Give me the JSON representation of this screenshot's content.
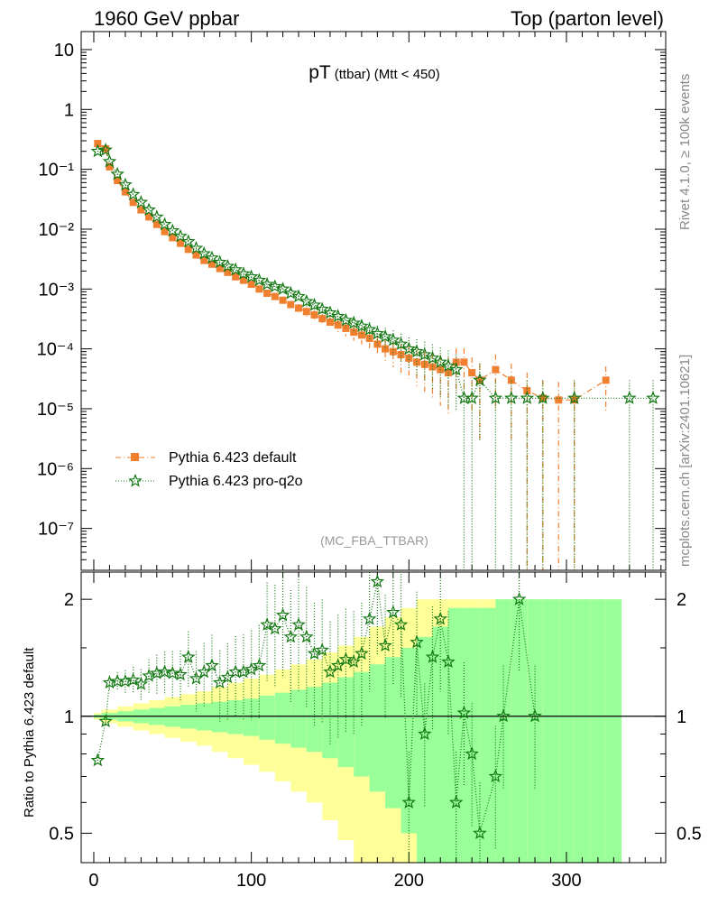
{
  "header": {
    "left": "1960 GeV ppbar",
    "right": "Top (parton level)"
  },
  "side_labels": {
    "rivet": "Rivet 4.1.0, ≥ 100k events",
    "mcplots": "mcplots.cern.ch [arXiv:2401.10621]"
  },
  "colors": {
    "default": "#f07f2f",
    "proq2o": "#117711",
    "band_outer": "#ffff99",
    "band_inner": "#99ff99"
  },
  "chart_data": [
    {
      "type": "scatter",
      "panel": "main",
      "title": "pT",
      "title_sub": "(ttbar)",
      "title_cut": "(Mtt < 450)",
      "analysis": "(MC_FBA_TTBAR)",
      "xlabel": "",
      "ylabel": "",
      "xlim": [
        -8,
        363
      ],
      "ylim": [
        2e-08,
        20
      ],
      "yscale": "log",
      "ytick_labels": [
        "10",
        "1",
        "10⁻¹",
        "10⁻²",
        "10⁻³",
        "10⁻⁴",
        "10⁻⁵",
        "10⁻⁶",
        "10⁻⁷"
      ],
      "ytick_values": [
        10,
        1,
        0.1,
        0.01,
        0.001,
        0.0001,
        1e-05,
        1e-06,
        1e-07
      ],
      "legend_position": "lower-left",
      "series": [
        {
          "name": "Pythia 6.423 default",
          "marker": "square",
          "line": "dash-dot",
          "x": [
            2.5,
            7.5,
            10,
            15,
            20,
            25,
            30,
            35,
            40,
            45,
            50,
            55,
            60,
            65,
            70,
            75,
            80,
            85,
            90,
            95,
            100,
            105,
            110,
            115,
            120,
            125,
            130,
            135,
            140,
            145,
            150,
            155,
            160,
            165,
            170,
            175,
            180,
            185,
            190,
            195,
            200,
            205,
            210,
            215,
            220,
            225,
            230,
            235,
            240,
            245,
            255,
            265,
            275,
            285,
            295,
            305,
            325
          ],
          "y": [
            0.27,
            0.22,
            0.11,
            0.065,
            0.042,
            0.028,
            0.021,
            0.016,
            0.012,
            0.0091,
            0.0072,
            0.0058,
            0.0046,
            0.0037,
            0.003,
            0.0026,
            0.0022,
            0.0019,
            0.0016,
            0.0014,
            0.0012,
            0.001,
            0.00085,
            0.00075,
            0.00065,
            0.00055,
            0.00048,
            0.00042,
            0.00037,
            0.00032,
            0.00028,
            0.00025,
            0.00022,
            0.00019,
            0.00017,
            0.00015,
            0.00012,
            0.0001,
            9e-05,
            8e-05,
            7e-05,
            6e-05,
            5.5e-05,
            5e-05,
            4.5e-05,
            4e-05,
            6e-05,
            6e-05,
            4e-05,
            3e-05,
            4.5e-05,
            3e-05,
            2e-05,
            1.5e-05,
            1.4e-05,
            1.4e-05,
            3e-05
          ],
          "yerr_rel": [
            0.01,
            0.01,
            0.01,
            0.02,
            0.02,
            0.03,
            0.03,
            0.03,
            0.04,
            0.04,
            0.05,
            0.05,
            0.06,
            0.06,
            0.07,
            0.07,
            0.08,
            0.08,
            0.09,
            0.1,
            0.1,
            0.11,
            0.12,
            0.13,
            0.14,
            0.15,
            0.16,
            0.17,
            0.18,
            0.2,
            0.22,
            0.24,
            0.26,
            0.28,
            0.3,
            0.33,
            0.36,
            0.4,
            0.45,
            0.5,
            0.55,
            0.6,
            0.65,
            0.7,
            0.75,
            0.8,
            0.7,
            0.7,
            0.8,
            0.9,
            0.8,
            0.9,
            1.0,
            1.0,
            1.0,
            1.0,
            0.7
          ]
        },
        {
          "name": "Pythia 6.423 pro-q2o",
          "marker": "star",
          "line": "dotted",
          "x": [
            2.5,
            7.5,
            10,
            15,
            20,
            25,
            30,
            35,
            40,
            45,
            50,
            55,
            60,
            65,
            70,
            75,
            80,
            85,
            90,
            95,
            100,
            105,
            110,
            115,
            120,
            125,
            130,
            135,
            140,
            145,
            150,
            155,
            160,
            165,
            170,
            175,
            180,
            185,
            190,
            195,
            200,
            205,
            210,
            215,
            220,
            225,
            230,
            235,
            240,
            245,
            255,
            265,
            275,
            285,
            305,
            340,
            355
          ],
          "y": [
            0.2,
            0.21,
            0.135,
            0.083,
            0.055,
            0.038,
            0.028,
            0.021,
            0.016,
            0.012,
            0.0094,
            0.0076,
            0.0062,
            0.0048,
            0.0039,
            0.0033,
            0.0028,
            0.0024,
            0.0021,
            0.0018,
            0.0016,
            0.0014,
            0.0012,
            0.0011,
            0.001,
            0.00085,
            0.00075,
            0.00062,
            0.00054,
            0.00046,
            0.0004,
            0.00035,
            0.0003,
            0.00027,
            0.00024,
            0.00021,
            0.00018,
            0.00016,
            0.00014,
            0.00012,
            0.0001,
            9e-05,
            8e-05,
            7e-05,
            6e-05,
            5.2e-05,
            4.5e-05,
            1.5e-05,
            1.5e-05,
            3e-05,
            1.5e-05,
            1.5e-05,
            1.5e-05,
            1.5e-05,
            1.5e-05,
            1.5e-05,
            1.5e-05
          ],
          "yerr_rel": [
            0.01,
            0.01,
            0.01,
            0.02,
            0.02,
            0.03,
            0.03,
            0.03,
            0.04,
            0.04,
            0.05,
            0.05,
            0.06,
            0.06,
            0.07,
            0.07,
            0.08,
            0.08,
            0.09,
            0.1,
            0.1,
            0.11,
            0.12,
            0.13,
            0.14,
            0.15,
            0.16,
            0.17,
            0.18,
            0.2,
            0.22,
            0.24,
            0.26,
            0.28,
            0.3,
            0.33,
            0.36,
            0.4,
            0.45,
            0.5,
            0.55,
            0.6,
            0.65,
            0.7,
            0.75,
            0.8,
            0.8,
            1.0,
            1.0,
            0.9,
            1.0,
            1.0,
            1.0,
            1.0,
            1.0,
            1.0,
            1.0
          ]
        }
      ]
    },
    {
      "type": "scatter",
      "panel": "ratio",
      "ylabel": "Ratio to Pythia 6.423 default",
      "xlim": [
        -8,
        363
      ],
      "ylim": [
        0.42,
        2.35
      ],
      "yscale": "log",
      "xtick_labels": [
        "0",
        "100",
        "200",
        "300"
      ],
      "xtick_values": [
        0,
        100,
        200,
        300
      ],
      "ytick_labels": [
        "0.5",
        "1",
        "2"
      ],
      "ytick_values": [
        0.5,
        1,
        2
      ],
      "band_half_width": {
        "x": [
          2.5,
          10,
          20,
          30,
          40,
          50,
          60,
          70,
          80,
          90,
          100,
          110,
          120,
          130,
          140,
          150,
          160,
          170,
          180,
          190,
          200,
          210,
          220,
          230,
          240,
          250,
          260,
          270,
          280,
          290,
          300,
          310,
          320,
          330
        ],
        "inner": [
          0.01,
          0.02,
          0.03,
          0.04,
          0.05,
          0.06,
          0.07,
          0.08,
          0.09,
          0.1,
          0.11,
          0.13,
          0.15,
          0.17,
          0.19,
          0.22,
          0.26,
          0.3,
          0.36,
          0.42,
          0.5,
          0.6,
          0.7,
          0.9,
          0.9,
          0.9,
          1.0,
          1.0,
          1.0,
          1.0,
          1.0,
          1.0,
          1.0,
          1.0
        ],
        "outer": [
          0.02,
          0.04,
          0.06,
          0.08,
          0.1,
          0.12,
          0.14,
          0.16,
          0.19,
          0.22,
          0.25,
          0.28,
          0.32,
          0.36,
          0.4,
          0.46,
          0.52,
          0.6,
          0.7,
          0.8,
          0.9,
          1.0,
          1.0,
          1.0,
          1.0,
          1.0,
          1.0,
          1.0,
          1.0,
          1.0,
          1.0,
          1.0,
          1.0,
          1.0
        ]
      },
      "ratio": {
        "x": [
          2.5,
          7.5,
          10,
          15,
          20,
          25,
          30,
          35,
          40,
          45,
          50,
          55,
          60,
          65,
          70,
          75,
          80,
          85,
          90,
          95,
          100,
          105,
          110,
          115,
          120,
          125,
          130,
          135,
          140,
          145,
          150,
          155,
          160,
          165,
          170,
          175,
          180,
          185,
          190,
          195,
          200,
          205,
          210,
          215,
          220,
          225,
          230,
          235,
          240,
          245,
          255,
          260,
          270,
          280
        ],
        "y": [
          0.77,
          0.97,
          1.22,
          1.23,
          1.23,
          1.24,
          1.21,
          1.27,
          1.29,
          1.3,
          1.29,
          1.28,
          1.42,
          1.25,
          1.3,
          1.35,
          1.22,
          1.26,
          1.3,
          1.3,
          1.32,
          1.35,
          1.72,
          1.68,
          1.82,
          1.6,
          1.72,
          1.6,
          1.45,
          1.48,
          1.3,
          1.35,
          1.4,
          1.38,
          1.45,
          1.78,
          2.22,
          1.52,
          1.85,
          1.72,
          0.6,
          1.55,
          0.9,
          1.42,
          1.78,
          1.38,
          0.6,
          1.02,
          0.8,
          0.5,
          0.7,
          1.0,
          2.0,
          1.0
        ]
      }
    }
  ]
}
